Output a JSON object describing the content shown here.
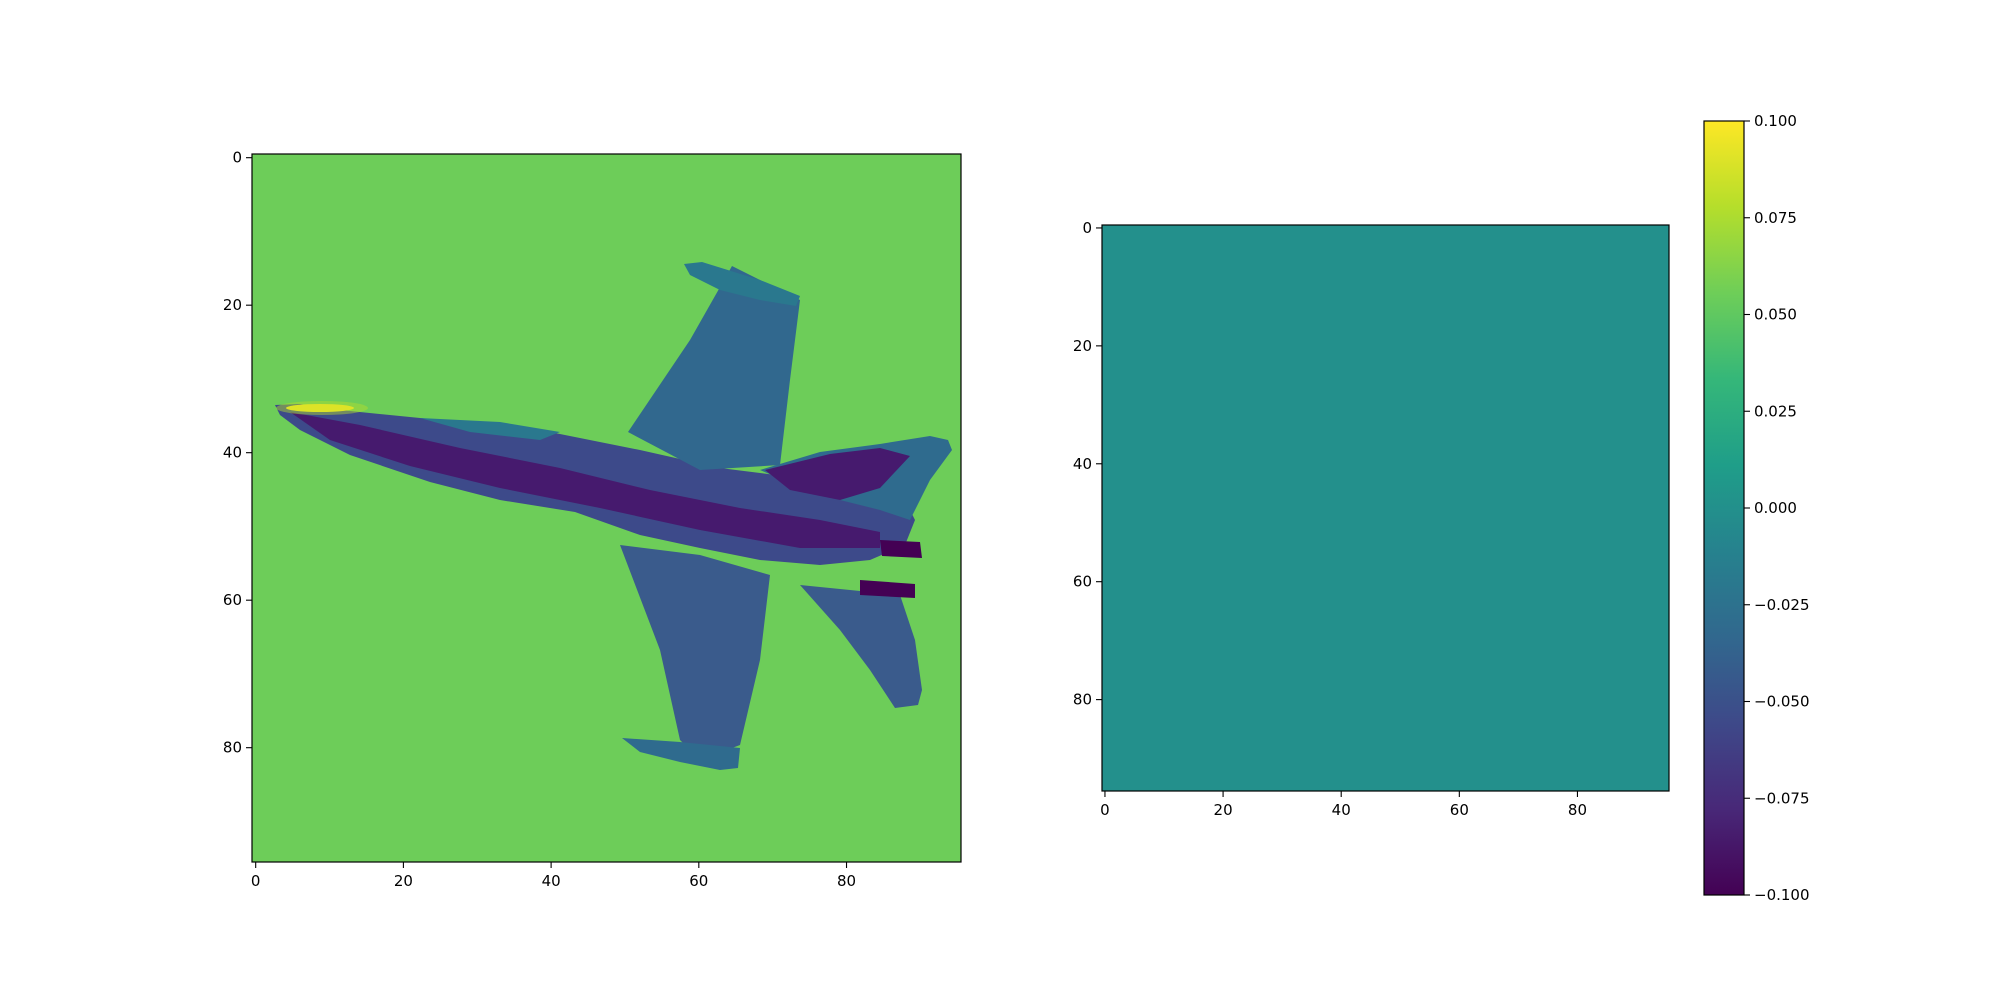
{
  "chart_data": [
    {
      "type": "heatmap",
      "image_size": [
        96,
        96
      ],
      "x_ticks": [
        "0",
        "20",
        "40",
        "60",
        "80"
      ],
      "y_ticks": [
        "0",
        "20",
        "40",
        "60",
        "80"
      ],
      "xlim": [
        -0.5,
        95.5
      ],
      "ylim": [
        95.5,
        -0.5
      ],
      "colormap": "viridis",
      "background_value": 0.055,
      "depicts": "fighter jet",
      "highlight_value": 0.1
    },
    {
      "type": "heatmap",
      "image_size": [
        96,
        96
      ],
      "x_ticks": [
        "0",
        "20",
        "40",
        "60",
        "80"
      ],
      "y_ticks": [
        "0",
        "20",
        "40",
        "60",
        "80"
      ],
      "xlim": [
        -0.5,
        95.5
      ],
      "ylim": [
        95.5,
        -0.5
      ],
      "colormap": "viridis",
      "uniform_value": 0.0
    }
  ],
  "colorbar": {
    "min": -0.1,
    "max": 0.1,
    "ticks": [
      {
        "value": 0.1,
        "label": "0.100"
      },
      {
        "value": 0.075,
        "label": "0.075"
      },
      {
        "value": 0.05,
        "label": "0.050"
      },
      {
        "value": 0.025,
        "label": "0.025"
      },
      {
        "value": 0.0,
        "label": "0.000"
      },
      {
        "value": -0.025,
        "label": "−0.025"
      },
      {
        "value": -0.05,
        "label": "−0.050"
      },
      {
        "value": -0.075,
        "label": "−0.075"
      },
      {
        "value": -0.1,
        "label": "−0.100"
      }
    ],
    "colormap_stops": [
      "#440154",
      "#482878",
      "#3e4989",
      "#31688e",
      "#26828e",
      "#1f9e89",
      "#35b779",
      "#6ece58",
      "#b5de2b",
      "#fde725"
    ]
  }
}
